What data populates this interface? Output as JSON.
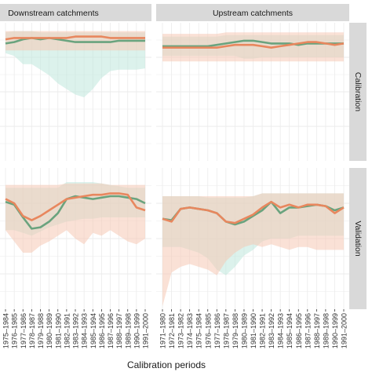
{
  "chart_data": {
    "type": "line",
    "xlabel": "Calibration periods",
    "ylabel": "",
    "grid": true,
    "legend": "none",
    "colors": {
      "green_line": "#6aa37e",
      "green_band": "#bfe8dc",
      "orange_line": "#e8875e",
      "orange_band": "#f6c8b4",
      "strip_fill": "#d9d9d9",
      "panel_bg": "#ffffff",
      "grid": "#ebebeb"
    },
    "x_left": [
      "1975–1984",
      "1976–1985",
      "1977–1986",
      "1978–1987",
      "1979–1988",
      "1980–1989",
      "1981–1990",
      "1982–1991",
      "1983–1992",
      "1984–1993",
      "1985–1994",
      "1986–1995",
      "1987–1996",
      "1988–1997",
      "1989–1998",
      "1990–1999",
      "1991–2000"
    ],
    "x_right": [
      "1971–1980",
      "1972–1981",
      "1973–1982",
      "1974–1983",
      "1975–1984",
      "1976–1985",
      "1977–1986",
      "1978–1987",
      "1979–1988",
      "1980–1989",
      "1981–1990",
      "1982–1991",
      "1983–1992",
      "1984–1993",
      "1985–1994",
      "1986–1995",
      "1987–1996",
      "1988–1997",
      "1989–1998",
      "1990–1999",
      "1991–2000"
    ],
    "column_strips": [
      "Downstream catchments",
      "Upstream catchments"
    ],
    "row_strips": [
      "Calibration",
      "Validation"
    ],
    "panels": [
      {
        "column": "Downstream catchments",
        "row": "Calibration",
        "ylim": [
          0,
          1
        ],
        "series": [
          {
            "values": [
              0.85,
              0.86,
              0.88,
              0.89,
              0.88,
              0.89,
              0.88,
              0.87,
              0.86,
              0.86,
              0.86,
              0.86,
              0.86,
              0.87,
              0.87,
              0.87,
              0.87
            ],
            "band_low": [
              0.78,
              0.76,
              0.7,
              0.7,
              0.66,
              0.62,
              0.56,
              0.52,
              0.48,
              0.46,
              0.52,
              0.6,
              0.65,
              0.66,
              0.66,
              0.66,
              0.67
            ],
            "band_high": [
              0.93,
              0.94,
              0.94,
              0.94,
              0.93,
              0.93,
              0.93,
              0.93,
              0.93,
              0.93,
              0.93,
              0.93,
              0.93,
              0.93,
              0.93,
              0.93,
              0.93
            ]
          },
          {
            "values": [
              0.88,
              0.89,
              0.89,
              0.89,
              0.89,
              0.89,
              0.89,
              0.89,
              0.9,
              0.9,
              0.9,
              0.9,
              0.89,
              0.89,
              0.89,
              0.89,
              0.89
            ],
            "band_low": [
              0.8,
              0.8,
              0.8,
              0.8,
              0.8,
              0.8,
              0.8,
              0.8,
              0.8,
              0.8,
              0.8,
              0.8,
              0.8,
              0.8,
              0.8,
              0.8,
              0.8
            ],
            "band_high": [
              0.94,
              0.94,
              0.94,
              0.94,
              0.94,
              0.94,
              0.94,
              0.94,
              0.94,
              0.94,
              0.94,
              0.94,
              0.94,
              0.94,
              0.94,
              0.94,
              0.94
            ]
          }
        ]
      },
      {
        "column": "Upstream catchments",
        "row": "Calibration",
        "ylim": [
          0,
          1
        ],
        "series": [
          {
            "values": [
              0.83,
              0.83,
              0.83,
              0.83,
              0.83,
              0.83,
              0.84,
              0.85,
              0.86,
              0.87,
              0.87,
              0.86,
              0.85,
              0.85,
              0.85,
              0.84,
              0.85,
              0.85,
              0.85,
              0.85,
              0.85
            ],
            "band_low": [
              0.76,
              0.76,
              0.76,
              0.76,
              0.76,
              0.76,
              0.76,
              0.76,
              0.76,
              0.74,
              0.74,
              0.75,
              0.75,
              0.75,
              0.75,
              0.75,
              0.75,
              0.75,
              0.75,
              0.75,
              0.75
            ],
            "band_high": [
              0.9,
              0.9,
              0.9,
              0.9,
              0.9,
              0.9,
              0.9,
              0.91,
              0.91,
              0.91,
              0.91,
              0.91,
              0.91,
              0.91,
              0.91,
              0.91,
              0.91,
              0.91,
              0.91,
              0.91,
              0.91
            ]
          },
          {
            "values": [
              0.82,
              0.82,
              0.82,
              0.82,
              0.82,
              0.82,
              0.82,
              0.83,
              0.84,
              0.84,
              0.84,
              0.83,
              0.82,
              0.83,
              0.84,
              0.85,
              0.86,
              0.86,
              0.85,
              0.84,
              0.85
            ],
            "band_low": [
              0.72,
              0.72,
              0.72,
              0.72,
              0.72,
              0.72,
              0.72,
              0.72,
              0.72,
              0.72,
              0.72,
              0.72,
              0.72,
              0.72,
              0.72,
              0.72,
              0.72,
              0.72,
              0.72,
              0.72,
              0.72
            ],
            "band_high": [
              0.92,
              0.92,
              0.92,
              0.92,
              0.92,
              0.92,
              0.92,
              0.93,
              0.93,
              0.93,
              0.93,
              0.93,
              0.93,
              0.93,
              0.93,
              0.93,
              0.93,
              0.93,
              0.93,
              0.93,
              0.93
            ]
          }
        ]
      },
      {
        "column": "Downstream catchments",
        "row": "Validation",
        "ylim": [
          0,
          1
        ],
        "series": [
          {
            "values": [
              0.76,
              0.74,
              0.65,
              0.57,
              0.58,
              0.62,
              0.68,
              0.78,
              0.8,
              0.79,
              0.78,
              0.79,
              0.8,
              0.8,
              0.79,
              0.78,
              0.75
            ],
            "band_low": [
              0.56,
              0.56,
              0.54,
              0.52,
              0.55,
              0.58,
              0.6,
              0.62,
              0.63,
              0.64,
              0.64,
              0.65,
              0.65,
              0.65,
              0.65,
              0.65,
              0.65
            ],
            "band_high": [
              0.86,
              0.86,
              0.86,
              0.86,
              0.86,
              0.86,
              0.86,
              0.9,
              0.9,
              0.9,
              0.9,
              0.89,
              0.88,
              0.87,
              0.86,
              0.86,
              0.86
            ]
          },
          {
            "values": [
              0.78,
              0.75,
              0.66,
              0.63,
              0.66,
              0.7,
              0.74,
              0.78,
              0.79,
              0.8,
              0.81,
              0.81,
              0.82,
              0.82,
              0.81,
              0.72,
              0.7
            ],
            "band_low": [
              0.56,
              0.48,
              0.4,
              0.4,
              0.45,
              0.48,
              0.52,
              0.56,
              0.5,
              0.46,
              0.54,
              0.52,
              0.56,
              0.52,
              0.48,
              0.46,
              0.5
            ],
            "band_high": [
              0.88,
              0.88,
              0.88,
              0.88,
              0.88,
              0.88,
              0.88,
              0.89,
              0.89,
              0.89,
              0.89,
              0.89,
              0.88,
              0.88,
              0.88,
              0.88,
              0.88
            ]
          }
        ]
      },
      {
        "column": "Upstream catchments",
        "row": "Validation",
        "ylim": [
          0,
          1
        ],
        "series": [
          {
            "values": [
              0.64,
              0.63,
              0.71,
              0.72,
              0.71,
              0.7,
              0.68,
              0.62,
              0.6,
              0.62,
              0.66,
              0.7,
              0.76,
              0.68,
              0.72,
              0.72,
              0.73,
              0.74,
              0.73,
              0.7,
              0.72
            ],
            "band_low": [
              0.44,
              0.44,
              0.44,
              0.42,
              0.4,
              0.36,
              0.28,
              0.24,
              0.3,
              0.38,
              0.42,
              0.48,
              0.5,
              0.5,
              0.5,
              0.52,
              0.52,
              0.52,
              0.52,
              0.52,
              0.52
            ],
            "band_high": [
              0.8,
              0.8,
              0.8,
              0.8,
              0.8,
              0.79,
              0.79,
              0.79,
              0.79,
              0.79,
              0.8,
              0.82,
              0.82,
              0.82,
              0.82,
              0.82,
              0.82,
              0.82,
              0.82,
              0.82,
              0.82
            ]
          },
          {
            "values": [
              0.64,
              0.62,
              0.71,
              0.72,
              0.71,
              0.7,
              0.68,
              0.62,
              0.61,
              0.64,
              0.67,
              0.72,
              0.76,
              0.72,
              0.74,
              0.72,
              0.74,
              0.74,
              0.73,
              0.68,
              0.72
            ],
            "band_low": [
              0.02,
              0.26,
              0.3,
              0.32,
              0.3,
              0.28,
              0.24,
              0.34,
              0.4,
              0.44,
              0.46,
              0.44,
              0.46,
              0.44,
              0.42,
              0.44,
              0.44,
              0.42,
              0.42,
              0.42,
              0.42
            ],
            "band_high": [
              0.8,
              0.8,
              0.8,
              0.8,
              0.8,
              0.8,
              0.8,
              0.8,
              0.8,
              0.8,
              0.8,
              0.82,
              0.82,
              0.82,
              0.82,
              0.82,
              0.82,
              0.82,
              0.82,
              0.82,
              0.82
            ]
          }
        ]
      }
    ]
  }
}
